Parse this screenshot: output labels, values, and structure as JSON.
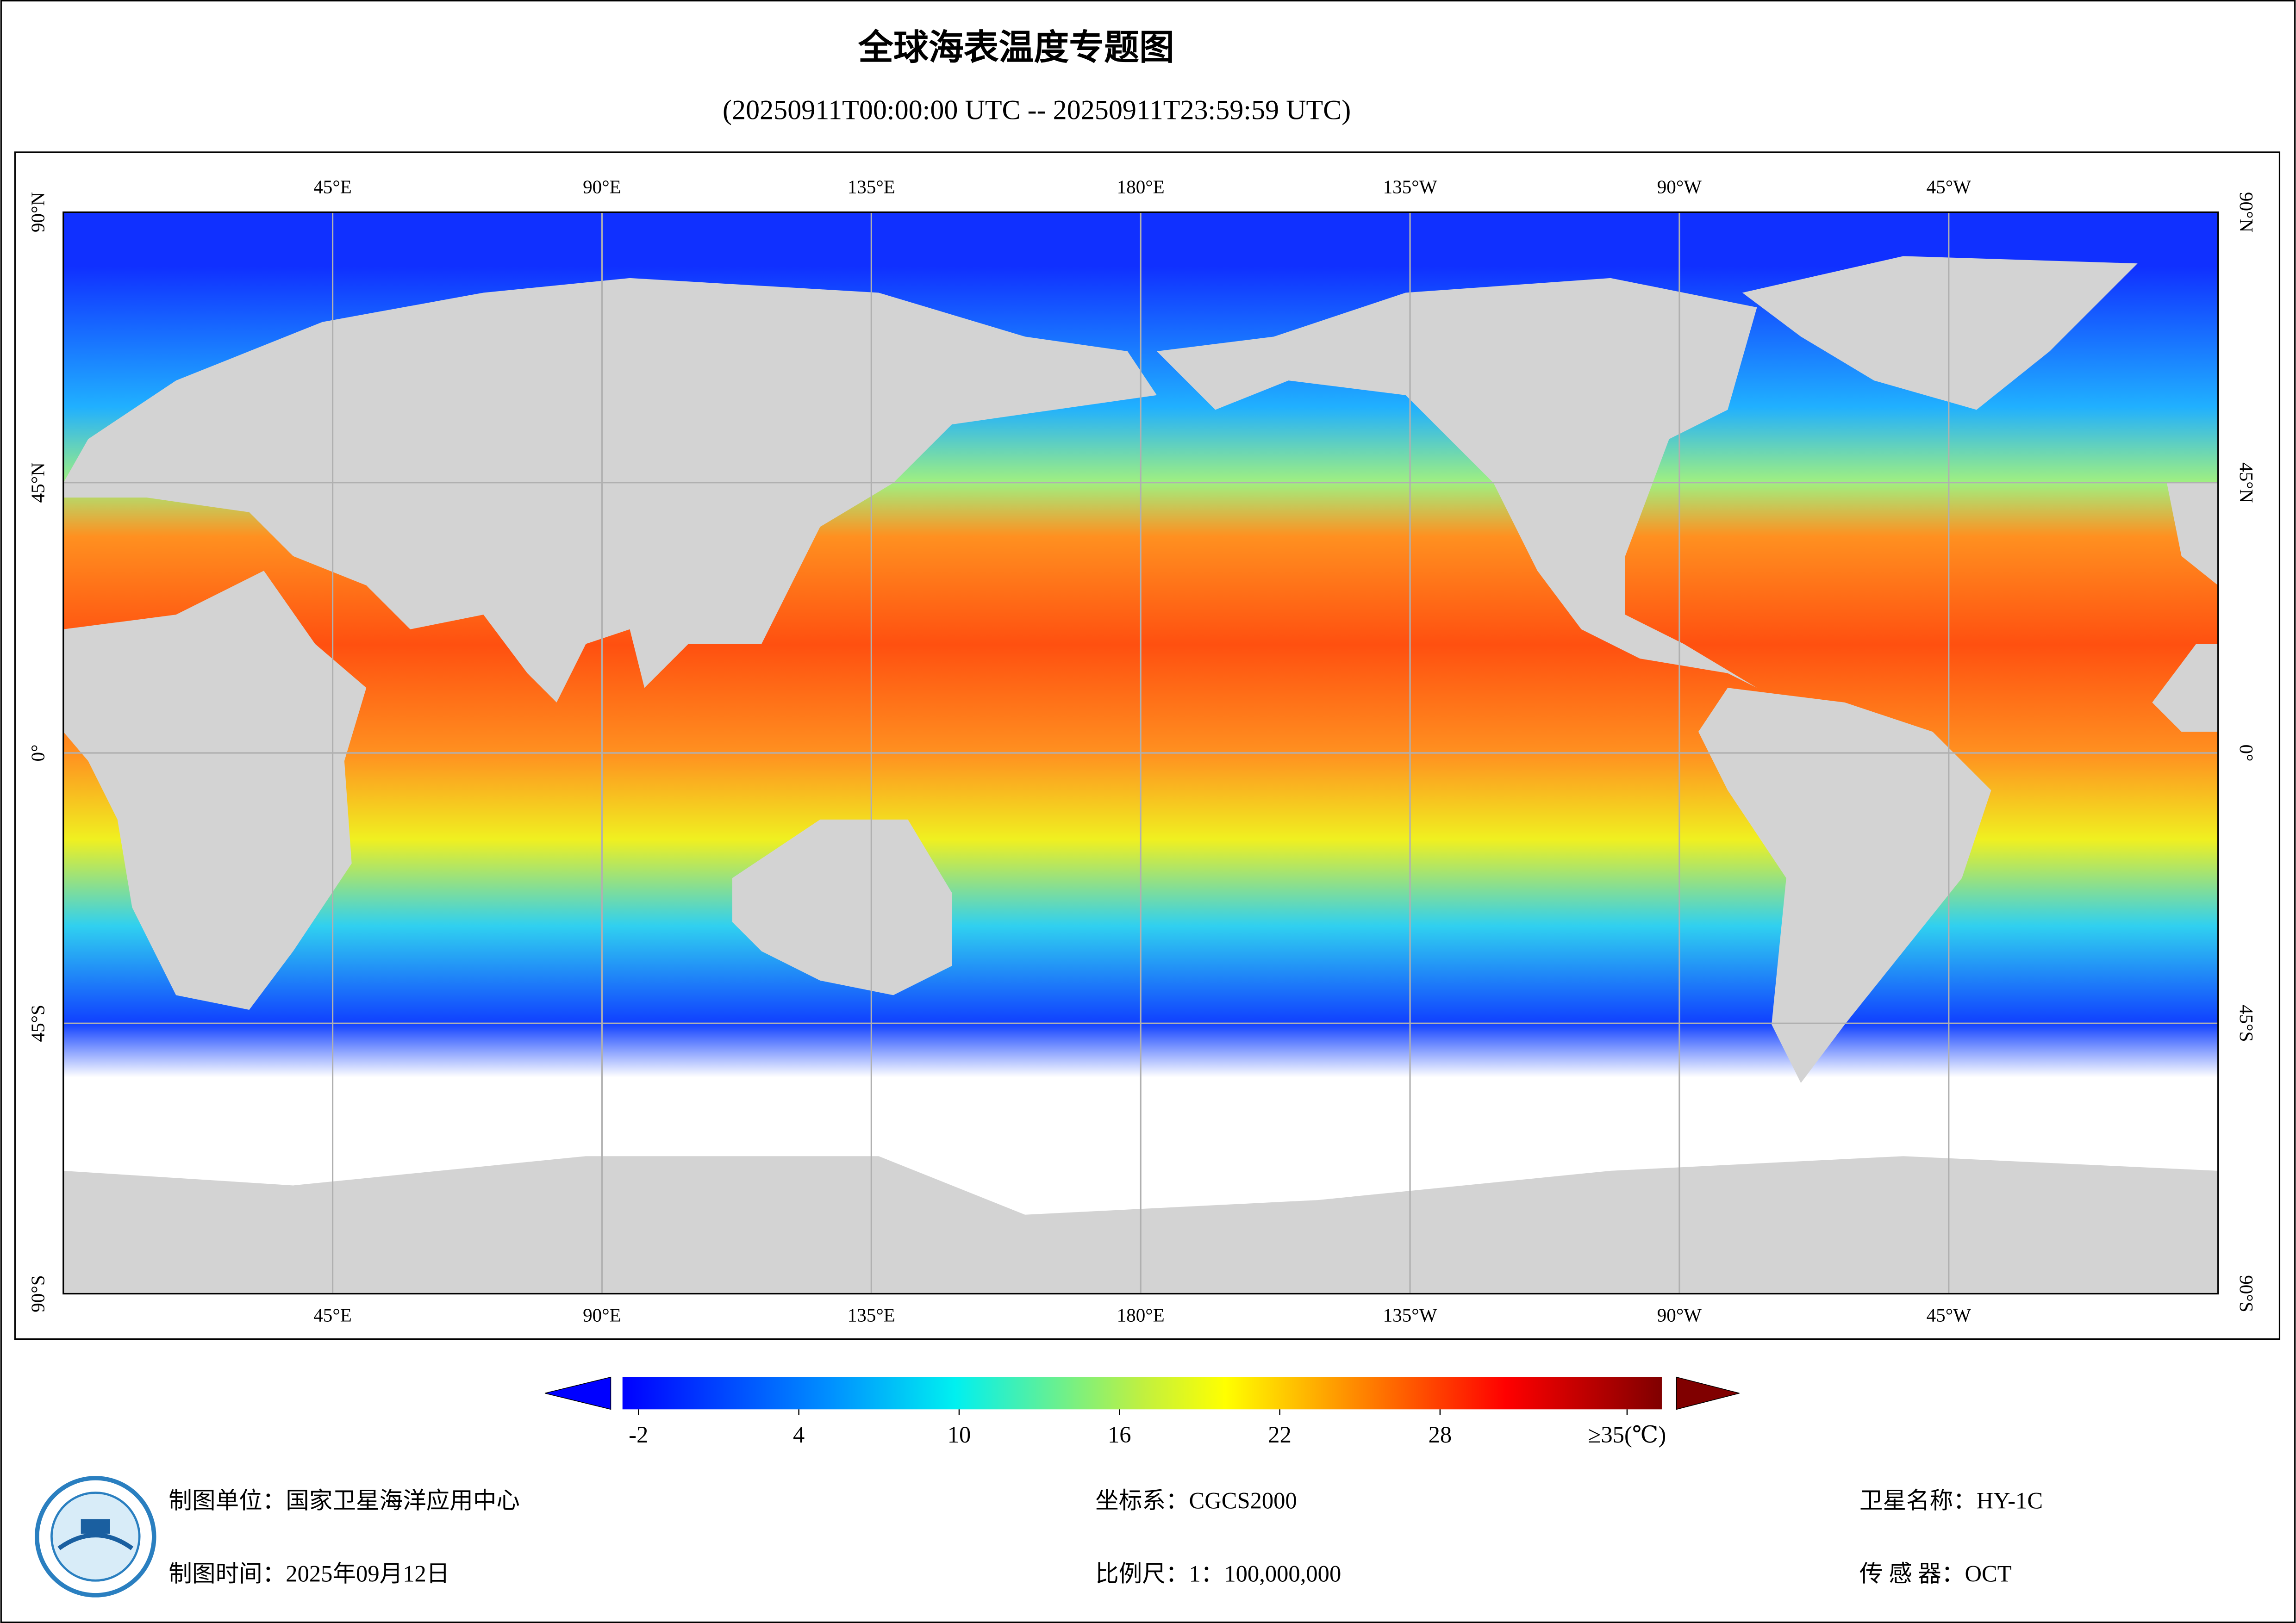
{
  "header": {
    "title": "全球海表温度专题图",
    "subtitle": "(20250911T00:00:00 UTC -- 20250911T23:59:59 UTC)"
  },
  "map": {
    "lon_range": [
      0,
      360
    ],
    "lat_range": [
      -90,
      90
    ],
    "lon_ticks": [
      {
        "value": 45,
        "label": "45°E"
      },
      {
        "value": 90,
        "label": "90°E"
      },
      {
        "value": 135,
        "label": "135°E"
      },
      {
        "value": 180,
        "label": "180°E"
      },
      {
        "value": 225,
        "label": "135°W"
      },
      {
        "value": 270,
        "label": "90°W"
      },
      {
        "value": 315,
        "label": "45°W"
      }
    ],
    "lat_ticks": [
      {
        "value": 90,
        "label": "90°N"
      },
      {
        "value": 45,
        "label": "45°N"
      },
      {
        "value": 0,
        "label": "0°"
      },
      {
        "value": -45,
        "label": "45°S"
      },
      {
        "value": -90,
        "label": "90°S"
      }
    ]
  },
  "colorbar": {
    "range": [
      -2.6,
      36.3
    ],
    "ticks": [
      -2,
      4,
      10,
      16,
      22,
      28,
      {
        "value": 35,
        "label": "≥35(℃)"
      }
    ]
  },
  "footer": {
    "unit": "制图单位：国家卫星海洋应用中心",
    "time": "制图时间：2025年09月12日",
    "crs": "坐标系：CGCS2000",
    "scale": "比例尺：1：100,000,000",
    "satellite": "卫星名称：HY-1C",
    "sensor": "传 感 器：OCT"
  }
}
